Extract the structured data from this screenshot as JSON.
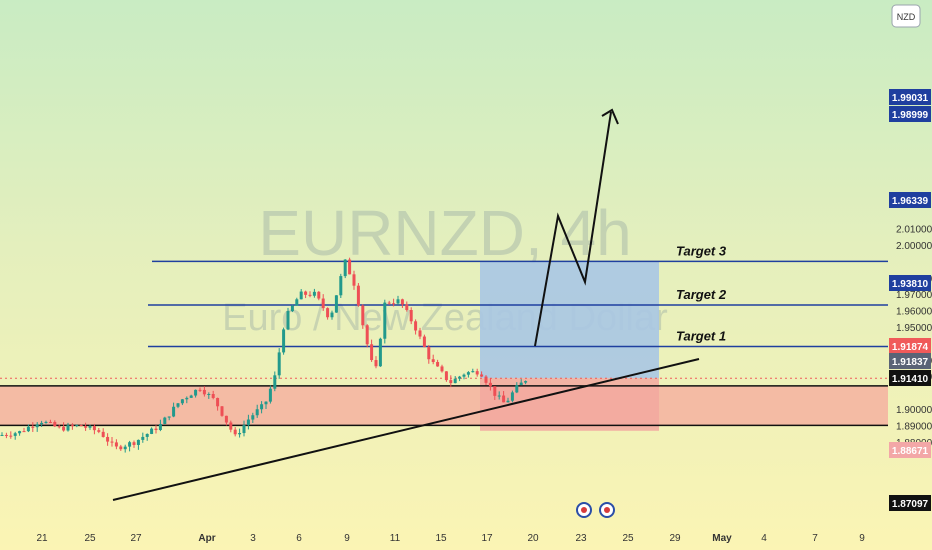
{
  "chart_data": {
    "type": "candlestick",
    "symbol_watermark": "EURNZD, 4h",
    "name_watermark": "Euro / New Zealand Dollar",
    "currency": "NZD",
    "y_ticks": [
      "2.01000",
      "2.00000",
      "1.98000",
      "1.97000",
      "1.96000",
      "1.95000",
      "1.93000",
      "1.92000",
      "1.90000",
      "1.89000",
      "1.88000"
    ],
    "x_ticks": [
      {
        "label": "21",
        "bold": false
      },
      {
        "label": "25",
        "bold": false
      },
      {
        "label": "27",
        "bold": false
      },
      {
        "label": "Apr",
        "bold": true
      },
      {
        "label": "3",
        "bold": false
      },
      {
        "label": "6",
        "bold": false
      },
      {
        "label": "9",
        "bold": false
      },
      {
        "label": "11",
        "bold": false
      },
      {
        "label": "15",
        "bold": false
      },
      {
        "label": "17",
        "bold": false
      },
      {
        "label": "20",
        "bold": false
      },
      {
        "label": "23",
        "bold": false
      },
      {
        "label": "25",
        "bold": false
      },
      {
        "label": "29",
        "bold": false
      },
      {
        "label": "May",
        "bold": true
      },
      {
        "label": "4",
        "bold": false
      },
      {
        "label": "7",
        "bold": false
      },
      {
        "label": "9",
        "bold": false
      }
    ],
    "target_levels": [
      {
        "label": "Target 3",
        "value": 1.98999
      },
      {
        "label": "Target 2",
        "value": 1.96339
      },
      {
        "label": "Target 1",
        "value": 1.9381
      }
    ],
    "support_zone": {
      "top": 1.9141,
      "bottom": 1.89
    },
    "position": {
      "entry": 1.91874,
      "target": 1.98999,
      "stop": 1.88671
    },
    "price_badges": [
      {
        "text": "1.99031",
        "bg": "#1f3f9f",
        "fg": "#ffffff"
      },
      {
        "text": "1.98999",
        "bg": "#1f3f9f",
        "fg": "#ffffff"
      },
      {
        "text": "1.96339",
        "bg": "#1f3f9f",
        "fg": "#ffffff"
      },
      {
        "text": "1.93810",
        "bg": "#1f3f9f",
        "fg": "#ffffff"
      },
      {
        "text": "1.91874",
        "bg": "#f05a5a",
        "fg": "#ffffff"
      },
      {
        "text": "1.91837",
        "bg": "#5a6376",
        "fg": "#ffffff"
      },
      {
        "text": "1.91410",
        "bg": "#111111",
        "fg": "#ffffff"
      },
      {
        "text": "1.88671",
        "bg": "#f3a7a7",
        "fg": "#ffffff"
      },
      {
        "text": "1.87097",
        "bg": "#111111",
        "fg": "#ffffff"
      }
    ],
    "projection_path": [
      {
        "date": "Apr 19",
        "price": 1.9187
      },
      {
        "date": "Apr 22",
        "price": 1.96
      },
      {
        "date": "Apr 24",
        "price": 1.939
      },
      {
        "date": "Apr 26",
        "price": 1.99
      }
    ],
    "trendline": [
      {
        "date": "Mar 26",
        "price": 1.872
      },
      {
        "date": "Apr 29",
        "price": 1.9225
      }
    ],
    "colors": {
      "up": "#22998c",
      "down": "#ee4f55",
      "target_line": "#1f3f9f",
      "target_zone": "#a9c7e4",
      "stop_zone": "#f2a8a0",
      "support_zone": "#f4b2a0"
    }
  }
}
